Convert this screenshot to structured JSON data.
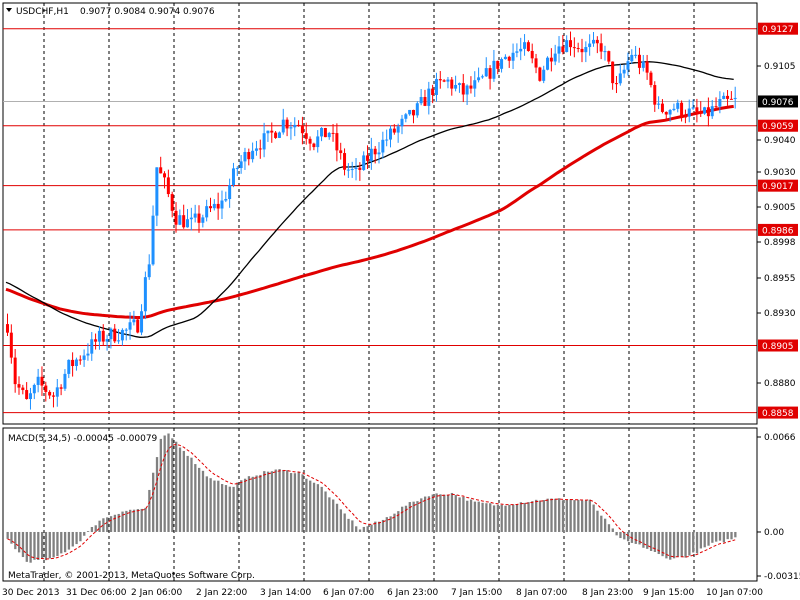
{
  "header": {
    "symbol": "USDCHF,H1",
    "ohlc": "0.9077 0.9084 0.9074 0.9076"
  },
  "macd_header": "MACD(5,34,5) -0.00045 -0.00079",
  "copyright": "MetaTrader, © 2001-2013, MetaQuotes Software Corp.",
  "colors": {
    "bull": "#1e90ff",
    "bear": "#ff0000",
    "level": "#e00000",
    "ma_fast": "#000000",
    "ma_slow": "#e00000",
    "macd_hist": "#808080",
    "macd_signal": "#e00000",
    "grid": "#000000"
  },
  "chart_data": {
    "type": "candlestick",
    "price_axis": {
      "ylim": [
        0.885,
        0.9145
      ],
      "ticks": [
        "0.9105",
        "0.9040",
        "0.9030",
        "0.9005",
        "0.8998",
        "0.8955",
        "0.8930",
        "0.8880"
      ]
    },
    "current_price": "0.9076",
    "levels": [
      {
        "price": 0.9127,
        "label": "0.9127"
      },
      {
        "price": 0.9059,
        "label": "0.9059"
      },
      {
        "price": 0.9017,
        "label": "0.9017"
      },
      {
        "price": 0.8986,
        "label": "0.8986"
      },
      {
        "price": 0.8905,
        "label": "0.8905"
      },
      {
        "price": 0.8858,
        "label": "0.8858"
      }
    ],
    "time_labels": [
      "30 Dec 2013",
      "31 Dec 06:00",
      "2 Jan 06:00",
      "2 Jan 22:00",
      "3 Jan 14:00",
      "6 Jan 07:00",
      "6 Jan 23:00",
      "7 Jan 15:00",
      "8 Jan 07:00",
      "8 Jan 23:00",
      "9 Jan 15:00",
      "10 Jan 07:00"
    ],
    "close_path": [
      [
        0,
        0.892
      ],
      [
        2,
        0.888
      ],
      [
        5,
        0.8865
      ],
      [
        8,
        0.8878
      ],
      [
        12,
        0.887
      ],
      [
        16,
        0.889
      ],
      [
        20,
        0.89
      ],
      [
        24,
        0.891
      ],
      [
        28,
        0.8913
      ],
      [
        31,
        0.8915
      ],
      [
        34,
        0.892
      ],
      [
        37,
        0.8965
      ],
      [
        39,
        0.903
      ],
      [
        41,
        0.9018
      ],
      [
        44,
        0.8995
      ],
      [
        48,
        0.899
      ],
      [
        52,
        0.8998
      ],
      [
        56,
        0.9005
      ],
      [
        60,
        0.903
      ],
      [
        64,
        0.9045
      ],
      [
        68,
        0.905
      ],
      [
        72,
        0.9062
      ],
      [
        76,
        0.906
      ],
      [
        80,
        0.9048
      ],
      [
        84,
        0.9055
      ],
      [
        88,
        0.903
      ],
      [
        91,
        0.9025
      ],
      [
        95,
        0.904
      ],
      [
        99,
        0.905
      ],
      [
        103,
        0.906
      ],
      [
        107,
        0.907
      ],
      [
        111,
        0.9085
      ],
      [
        115,
        0.909
      ],
      [
        119,
        0.9082
      ],
      [
        123,
        0.9088
      ],
      [
        127,
        0.91
      ],
      [
        131,
        0.911
      ],
      [
        135,
        0.9112
      ],
      [
        139,
        0.9095
      ],
      [
        143,
        0.9115
      ],
      [
        147,
        0.9118
      ],
      [
        151,
        0.9112
      ],
      [
        155,
        0.9115
      ],
      [
        159,
        0.9085
      ],
      [
        163,
        0.911
      ],
      [
        167,
        0.9095
      ],
      [
        170,
        0.907
      ],
      [
        174,
        0.9072
      ],
      [
        178,
        0.9068
      ],
      [
        182,
        0.9066
      ],
      [
        186,
        0.9074
      ],
      [
        190,
        0.9076
      ]
    ],
    "macd_axis": {
      "ylim": [
        -0.0033,
        0.007
      ],
      "ticks": [
        "0.0066",
        "0.00",
        "-0.00315"
      ]
    },
    "macd_path": [
      [
        0,
        -0.0005
      ],
      [
        5,
        -0.002
      ],
      [
        12,
        -0.0018
      ],
      [
        18,
        -0.0008
      ],
      [
        24,
        0.0008
      ],
      [
        30,
        0.0014
      ],
      [
        36,
        0.0016
      ],
      [
        40,
        0.0062
      ],
      [
        42,
        0.0066
      ],
      [
        46,
        0.0055
      ],
      [
        52,
        0.0038
      ],
      [
        58,
        0.003
      ],
      [
        64,
        0.0038
      ],
      [
        70,
        0.0042
      ],
      [
        76,
        0.004
      ],
      [
        82,
        0.003
      ],
      [
        88,
        0.0012
      ],
      [
        92,
        0.0002
      ],
      [
        98,
        0.0008
      ],
      [
        104,
        0.0018
      ],
      [
        110,
        0.0025
      ],
      [
        116,
        0.0026
      ],
      [
        122,
        0.002
      ],
      [
        128,
        0.0018
      ],
      [
        134,
        0.002
      ],
      [
        140,
        0.0022
      ],
      [
        146,
        0.0022
      ],
      [
        152,
        0.0021
      ],
      [
        156,
        0.0008
      ],
      [
        160,
        -0.0005
      ],
      [
        166,
        -0.001
      ],
      [
        172,
        -0.0018
      ],
      [
        178,
        -0.0016
      ],
      [
        184,
        -0.0008
      ],
      [
        190,
        -0.0004
      ]
    ]
  }
}
